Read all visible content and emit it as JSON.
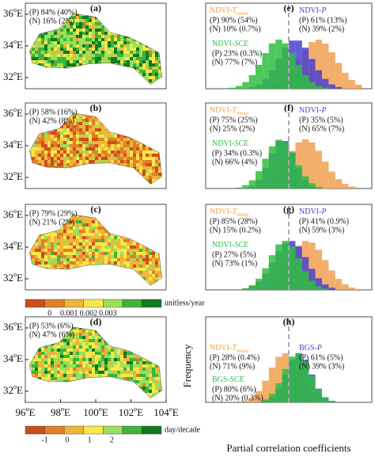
{
  "maps": [
    {
      "label": "(a)",
      "stats": [
        "(P) 84% (40%)",
        "(N) 16% (2%)"
      ]
    },
    {
      "label": "(b)",
      "stats": [
        "(P) 58% (16%)",
        "(N) 42% (8%)"
      ]
    },
    {
      "label": "(c)",
      "stats": [
        "(P) 79% (29%)",
        "(N) 21% (2%)"
      ]
    },
    {
      "label": "(d)",
      "stats": [
        "(P) 53% (6%)",
        "(N) 47% (6%)"
      ]
    }
  ],
  "latitude_ticks": [
    {
      "number": "36",
      "degree": "o",
      "hemisphere": "E"
    },
    {
      "number": "34",
      "degree": "o",
      "hemisphere": "E"
    },
    {
      "number": "32",
      "degree": "o",
      "hemisphere": "E"
    }
  ],
  "longitude_ticks": [
    {
      "number": "96",
      "degree": "o",
      "hemisphere": "E"
    },
    {
      "number": "98",
      "degree": "o",
      "hemisphere": "E"
    },
    {
      "number": "100",
      "degree": "o",
      "hemisphere": "E"
    },
    {
      "number": "102",
      "degree": "o",
      "hemisphere": "E"
    },
    {
      "number": "104",
      "degree": "o",
      "hemisphere": "E"
    }
  ],
  "colorbars": [
    {
      "ticks": [
        "0",
        "0.001",
        "0.002",
        "0.003"
      ],
      "unit": "unitless/year",
      "colors": [
        "#c8501a",
        "#e0802a",
        "#f0b438",
        "#f8e848",
        "#9be05a",
        "#3fb43a",
        "#127a20"
      ]
    },
    {
      "ticks": [
        "-1",
        "0",
        "1",
        "2"
      ],
      "unit": "day/decade",
      "colors": [
        "#c8501a",
        "#e0802a",
        "#f0b438",
        "#f8e848",
        "#9be05a",
        "#3fb43a",
        "#127a20"
      ]
    }
  ],
  "histograms": [
    {
      "label": "(e)",
      "groups": [
        {
          "prefix": "NDVI-",
          "variable": "T",
          "subscript": "mean",
          "color": "#f0a050",
          "stats": [
            "(P) 90% (54%)",
            "(N) 10% (0.7%)"
          ]
        },
        {
          "prefix": "NDVI-",
          "variable": "P",
          "color": "#4a3fd0",
          "stats": [
            "(P) 61% (13%)",
            "(N) 39% (2%)"
          ]
        },
        {
          "prefix": "NDVI-",
          "variable": "SCE",
          "color": "#2ec040",
          "stats": [
            "(P) 23% (0.3%)",
            "(N) 77% (7%)"
          ]
        }
      ]
    },
    {
      "label": "(f)",
      "groups": [
        {
          "prefix": "NDVI-",
          "variable": "T",
          "subscript": "mean",
          "color": "#f0a050",
          "stats": [
            "(P) 75% (25%)",
            "(N) 25% (2%)"
          ]
        },
        {
          "prefix": "NDVI-",
          "variable": "P",
          "color": "#4a3fd0",
          "stats": [
            "(P) 35% (5%)",
            "(N) 65% (7%)"
          ]
        },
        {
          "prefix": "NDVI-",
          "variable": "SCE",
          "color": "#2ec040",
          "stats": [
            "(P) 34% (0.3%)",
            "(N) 66% (4%)"
          ]
        }
      ]
    },
    {
      "label": "(g)",
      "groups": [
        {
          "prefix": "NDVI-",
          "variable": "T",
          "subscript": "mean",
          "color": "#f0a050",
          "stats": [
            "(P) 85% (28%)",
            "(N) 15% (0.2%)"
          ]
        },
        {
          "prefix": "NDVI-",
          "variable": "P",
          "color": "#4a3fd0",
          "stats": [
            "(P) 41% (0.9%)",
            "(N) 59% (3%)"
          ]
        },
        {
          "prefix": "NDVI-",
          "variable": "SCE",
          "color": "#2ec040",
          "stats": [
            "(P) 27% (5%)",
            "(N) 73% (1%)"
          ]
        }
      ]
    },
    {
      "label": "(h)",
      "groups": [
        {
          "prefix": "NDVI-",
          "variable": "T",
          "subscript": "mean",
          "color": "#f0a050",
          "stats": [
            "(P) 28% (0.4%)",
            "(N) 71% (9%)"
          ]
        },
        {
          "prefix": "BGS-",
          "variable": "P",
          "color": "#4a3fd0",
          "stats": [
            "(P) 61% (5%)",
            "(N) 39% (3%)"
          ]
        },
        {
          "prefix": "BGS-",
          "variable": "SCE",
          "color": "#2ec040",
          "stats": [
            "(P) 80% (6%)",
            "(N) 20% (0.3%)"
          ]
        }
      ]
    }
  ],
  "y_axis_label": "Frequency",
  "x_axis_label": "Partial correlation coefficients"
}
